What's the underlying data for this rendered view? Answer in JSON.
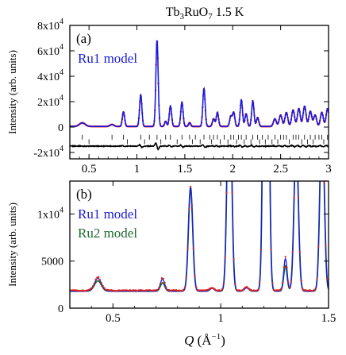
{
  "title": "Tb₃RuO₇ 1.5 K",
  "x_axis_label": "Q (Å⁻¹)",
  "colors": {
    "data": "#dd2222",
    "ru1": "#1a1adf",
    "ru2": "#1f6b2e",
    "diff": "#000000",
    "ticks": "#000000"
  },
  "chart_data": [
    {
      "panel_label": "(a)",
      "type": "line",
      "ylabel": "Intensity (arb. units)",
      "xlim": [
        0.3,
        3.0
      ],
      "ylim": [
        -25000,
        80000
      ],
      "x_ticks": [
        {
          "v": 0.5,
          "label": "0.5"
        },
        {
          "v": 1,
          "label": "1"
        },
        {
          "v": 1.5,
          "label": "1.5"
        },
        {
          "v": 2,
          "label": "2"
        },
        {
          "v": 2.5,
          "label": "2.5"
        },
        {
          "v": 3,
          "label": "3"
        }
      ],
      "y_ticks": [
        {
          "v": -20000,
          "mant": "-2x10",
          "exp": "4"
        },
        {
          "v": 0,
          "mant": "0",
          "exp": ""
        },
        {
          "v": 20000,
          "mant": "2x10",
          "exp": "4"
        },
        {
          "v": 40000,
          "mant": "4x10",
          "exp": "4"
        },
        {
          "v": 60000,
          "mant": "6x10",
          "exp": "4"
        },
        {
          "v": 80000,
          "mant": "8x10",
          "exp": "4"
        }
      ],
      "legend": [
        {
          "name": "Ru1 model",
          "color": "#1a1adf"
        }
      ],
      "background": 500,
      "peaks": [
        {
          "q": 0.43,
          "h": 2800,
          "w": 0.03
        },
        {
          "q": 0.74,
          "h": 1500,
          "w": 0.02
        },
        {
          "q": 0.86,
          "h": 11500,
          "w": 0.012
        },
        {
          "q": 1.04,
          "h": 25000,
          "w": 0.012
        },
        {
          "q": 1.21,
          "h": 68000,
          "w": 0.012
        },
        {
          "q": 1.3,
          "h": 4000,
          "w": 0.011
        },
        {
          "q": 1.35,
          "h": 16000,
          "w": 0.012
        },
        {
          "q": 1.47,
          "h": 19000,
          "w": 0.012
        },
        {
          "q": 1.55,
          "h": 3000,
          "w": 0.011
        },
        {
          "q": 1.7,
          "h": 30000,
          "w": 0.012
        },
        {
          "q": 1.8,
          "h": 6000,
          "w": 0.012
        },
        {
          "q": 1.84,
          "h": 11000,
          "w": 0.012
        },
        {
          "q": 1.98,
          "h": 8000,
          "w": 0.012
        },
        {
          "q": 2.01,
          "h": 11000,
          "w": 0.012
        },
        {
          "q": 2.09,
          "h": 21000,
          "w": 0.012
        },
        {
          "q": 2.14,
          "h": 10000,
          "w": 0.012
        },
        {
          "q": 2.21,
          "h": 20000,
          "w": 0.012
        },
        {
          "q": 2.26,
          "h": 7000,
          "w": 0.012
        },
        {
          "q": 2.44,
          "h": 6000,
          "w": 0.015
        },
        {
          "q": 2.5,
          "h": 9000,
          "w": 0.015
        },
        {
          "q": 2.56,
          "h": 11000,
          "w": 0.015
        },
        {
          "q": 2.63,
          "h": 13000,
          "w": 0.015
        },
        {
          "q": 2.69,
          "h": 14000,
          "w": 0.015
        },
        {
          "q": 2.75,
          "h": 16000,
          "w": 0.015
        },
        {
          "q": 2.81,
          "h": 12000,
          "w": 0.015
        },
        {
          "q": 2.86,
          "h": 9000,
          "w": 0.015
        },
        {
          "q": 2.93,
          "h": 11000,
          "w": 0.015
        },
        {
          "q": 2.99,
          "h": 14000,
          "w": 0.015
        }
      ],
      "diff_offset": -15000,
      "reflection_rows": [
        {
          "y": -8000,
          "q": [
            0.43,
            0.74,
            0.86,
            1.04,
            1.13,
            1.21,
            1.3,
            1.35,
            1.47,
            1.55,
            1.61,
            1.7,
            1.76,
            1.8,
            1.84,
            1.91,
            1.98,
            2.01,
            2.06,
            2.09,
            2.14,
            2.21,
            2.26,
            2.31,
            2.37,
            2.44,
            2.5,
            2.53,
            2.56,
            2.63,
            2.66,
            2.69,
            2.75,
            2.81,
            2.86,
            2.9,
            2.93,
            2.99
          ]
        },
        {
          "y": -11500,
          "q": [
            0.5,
            0.9,
            1.08,
            1.25,
            1.42,
            1.58,
            1.66,
            1.78,
            1.87,
            1.95,
            2.04,
            2.12,
            2.19,
            2.28,
            2.34,
            2.41,
            2.47,
            2.59,
            2.72,
            2.78,
            2.84,
            2.95
          ]
        }
      ]
    },
    {
      "panel_label": "(b)",
      "type": "line",
      "ylabel": "Intensity (arb. units)",
      "xlim": [
        0.3,
        1.5
      ],
      "ylim": [
        0,
        13500
      ],
      "x_ticks": [
        {
          "v": 0.5,
          "label": "0.5"
        },
        {
          "v": 1,
          "label": "1"
        },
        {
          "v": 1.5,
          "label": "1.5"
        }
      ],
      "y_ticks": [
        {
          "v": 0,
          "mant": "0",
          "exp": ""
        },
        {
          "v": 5000,
          "mant": "5000",
          "exp": ""
        },
        {
          "v": 10000,
          "mant": "1x10",
          "exp": "4"
        }
      ],
      "legend": [
        {
          "name": "Ru1 model",
          "color": "#1a1adf"
        },
        {
          "name": "Ru2 model",
          "color": "#1f6b2e"
        }
      ],
      "background": 1800,
      "peaks": [
        {
          "q": 0.43,
          "h": 1100,
          "w": 0.016
        },
        {
          "q": 0.73,
          "h": 900,
          "w": 0.01
        },
        {
          "q": 0.86,
          "h": 11000,
          "w": 0.01
        },
        {
          "q": 0.96,
          "h": 300,
          "w": 0.01
        },
        {
          "q": 1.04,
          "h": 25000,
          "w": 0.01
        },
        {
          "q": 1.12,
          "h": 350,
          "w": 0.01
        },
        {
          "q": 1.21,
          "h": 68000,
          "w": 0.01
        },
        {
          "q": 1.3,
          "h": 3000,
          "w": 0.008
        },
        {
          "q": 1.35,
          "h": 16000,
          "w": 0.01
        },
        {
          "q": 1.47,
          "h": 19000,
          "w": 0.01
        }
      ],
      "ru1_scale": [
        1.25,
        1.45,
        1.0,
        1.0,
        1.0,
        1.0,
        1.0,
        1.15,
        1.0,
        1.0
      ],
      "ru2_scale": [
        1.0,
        1.0,
        1.0,
        1.1,
        1.0,
        1.1,
        1.0,
        0.9,
        1.0,
        1.0
      ],
      "reflection_rows": [
        {
          "y": -1000,
          "q": [
            0.43,
            0.74,
            0.86,
            0.96,
            1.04,
            1.13,
            1.21,
            1.3,
            1.35,
            1.47
          ]
        },
        {
          "y": -1900,
          "q": [
            0.5,
            0.9,
            1.08,
            1.25,
            1.42
          ]
        }
      ]
    }
  ]
}
